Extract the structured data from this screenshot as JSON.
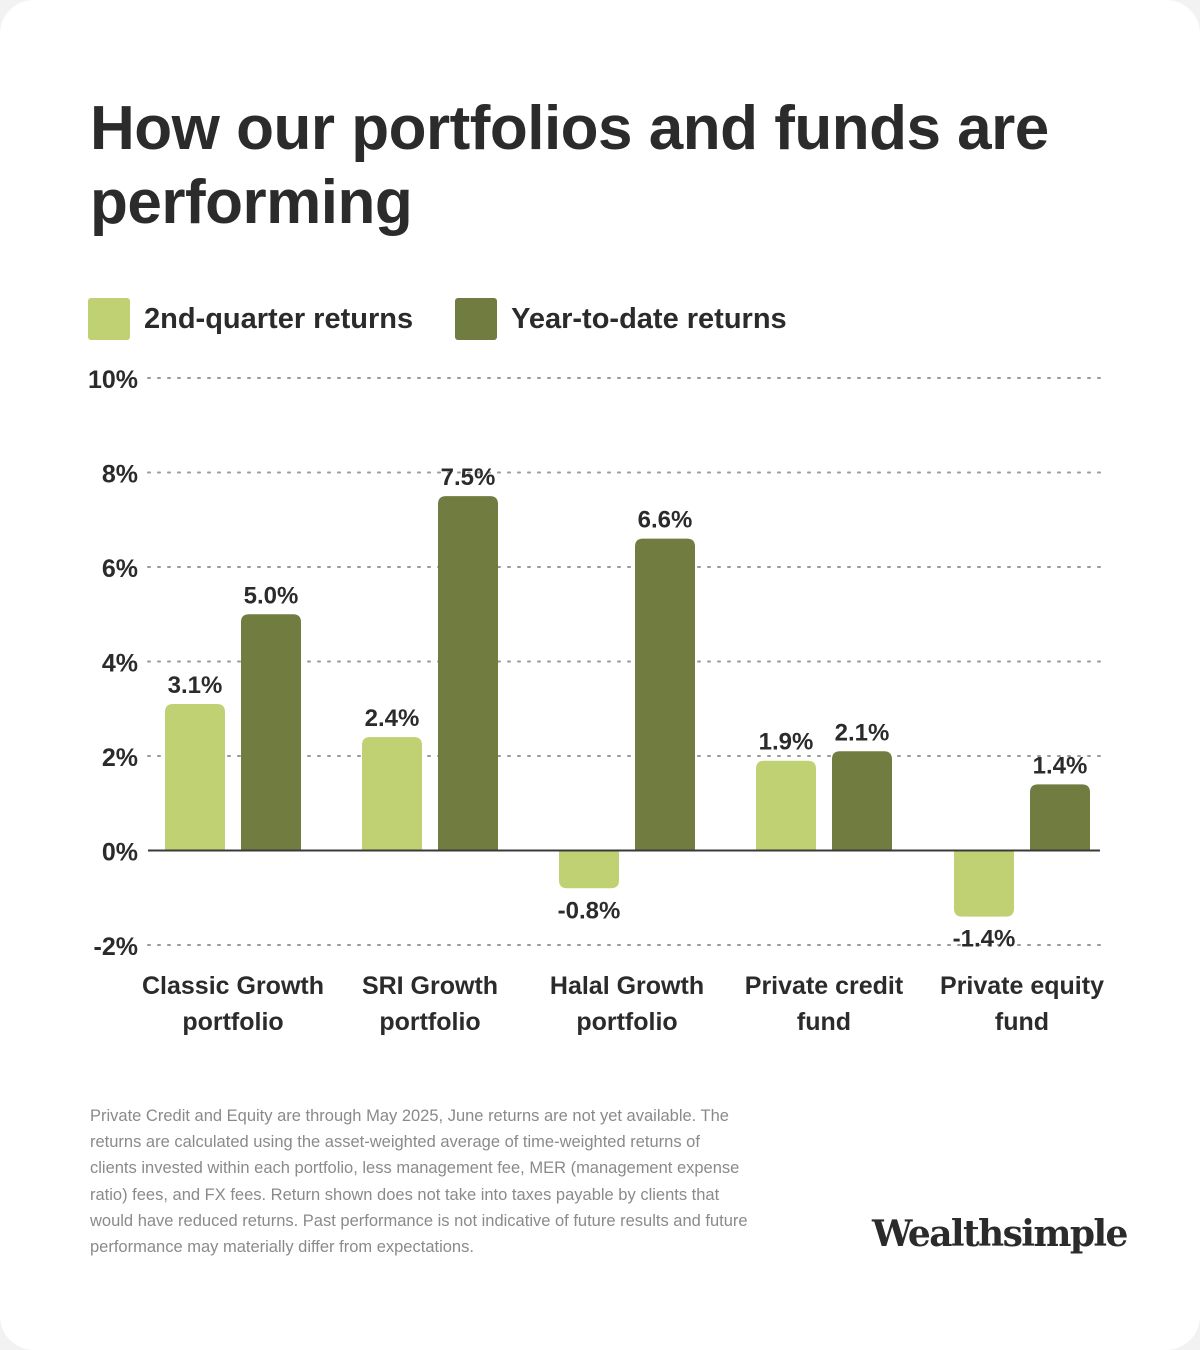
{
  "title": "How our portfolios and funds are performing",
  "legend": [
    {
      "label": "2nd-quarter returns",
      "color": "#bfd173"
    },
    {
      "label": "Year-to-date returns",
      "color": "#717c40"
    }
  ],
  "chart_data": {
    "type": "bar",
    "categories": [
      [
        "Classic Growth",
        "portfolio"
      ],
      [
        "SRI Growth",
        "portfolio"
      ],
      [
        "Halal Growth",
        "portfolio"
      ],
      [
        "Private credit",
        "fund"
      ],
      [
        "Private equity",
        "fund"
      ]
    ],
    "series": [
      {
        "name": "2nd-quarter returns",
        "color": "#bfd173",
        "values": [
          3.1,
          2.4,
          -0.8,
          1.9,
          -1.4
        ]
      },
      {
        "name": "Year-to-date returns",
        "color": "#717c40",
        "values": [
          5.0,
          7.5,
          6.6,
          2.1,
          1.4
        ]
      }
    ],
    "ylim": [
      -2,
      10
    ],
    "yticks": [
      10,
      8,
      6,
      4,
      2,
      0,
      -2
    ],
    "ytick_labels": [
      "10%",
      "8%",
      "6%",
      "4%",
      "2%",
      "0%",
      "-2%"
    ],
    "unit_suffix": "%",
    "grid": true,
    "legend_position": "top-left"
  },
  "footnote": "Private Credit and Equity are through May 2025, June returns are not yet available. The returns are calculated using the asset-weighted average of time-weighted returns of clients invested within each portfolio, less management fee, MER (management expense ratio) fees, and FX fees. Return shown does not take into taxes payable by clients that would have reduced returns. Past performance is not indicative of future results and future performance may materially differ from expectations.",
  "logo_text": "Wealthsimple"
}
